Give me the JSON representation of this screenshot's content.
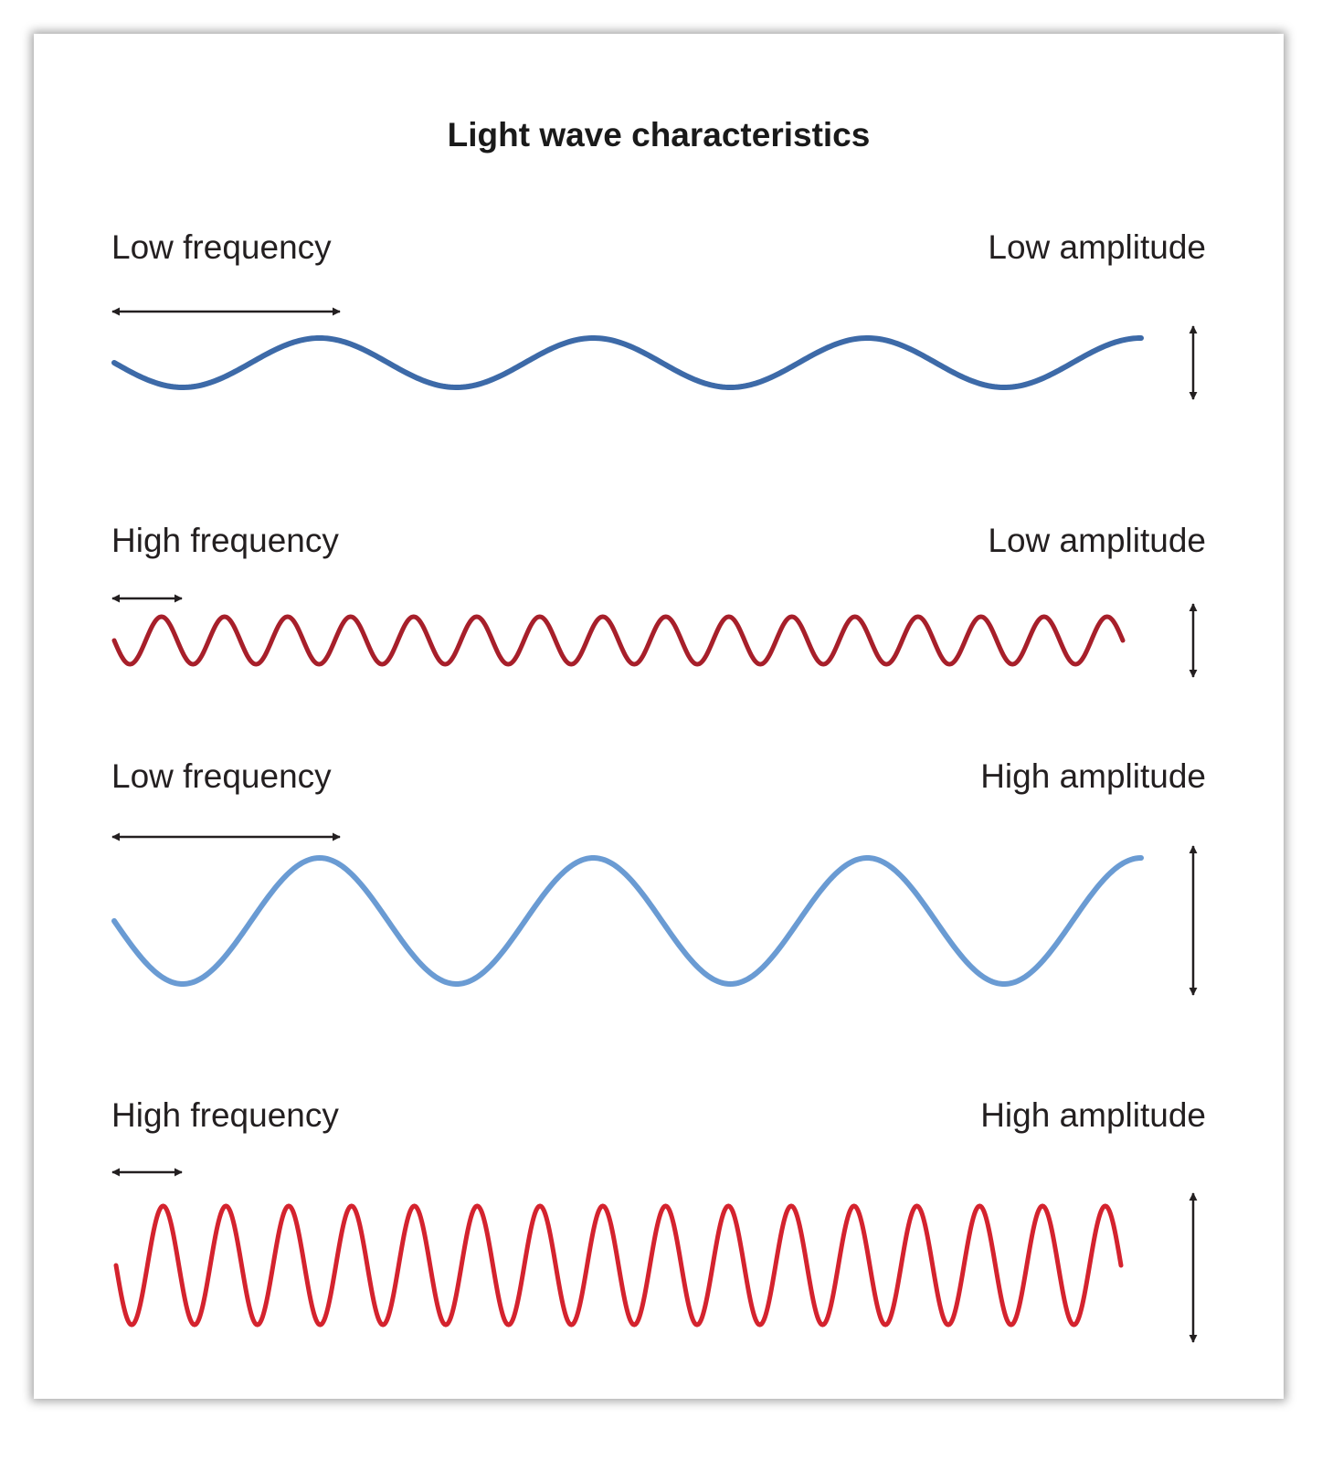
{
  "title": "Light wave characteristics",
  "colors": {
    "low_frequency_low_amplitude": "#3d6aa8",
    "high_frequency_low_amplitude": "#a71f2a",
    "low_frequency_high_amplitude": "#6a9bd3",
    "high_frequency_high_amplitude": "#d4232e",
    "arrows": "#231f20"
  },
  "panels": [
    {
      "frequency_label": "Low frequency",
      "amplitude_label": "Low amplitude",
      "frequency": "low",
      "amplitude": "low",
      "cycles_shown": 3.75,
      "color_key": "low_frequency_low_amplitude"
    },
    {
      "frequency_label": "High frequency",
      "amplitude_label": "Low amplitude",
      "frequency": "high",
      "amplitude": "low",
      "cycles_shown": 16,
      "color_key": "high_frequency_low_amplitude"
    },
    {
      "frequency_label": "Low frequency",
      "amplitude_label": "High amplitude",
      "frequency": "low",
      "amplitude": "high",
      "cycles_shown": 3.75,
      "color_key": "low_frequency_high_amplitude"
    },
    {
      "frequency_label": "High frequency",
      "amplitude_label": "High amplitude",
      "frequency": "high",
      "amplitude": "high",
      "cycles_shown": 16,
      "color_key": "high_frequency_high_amplitude"
    }
  ]
}
